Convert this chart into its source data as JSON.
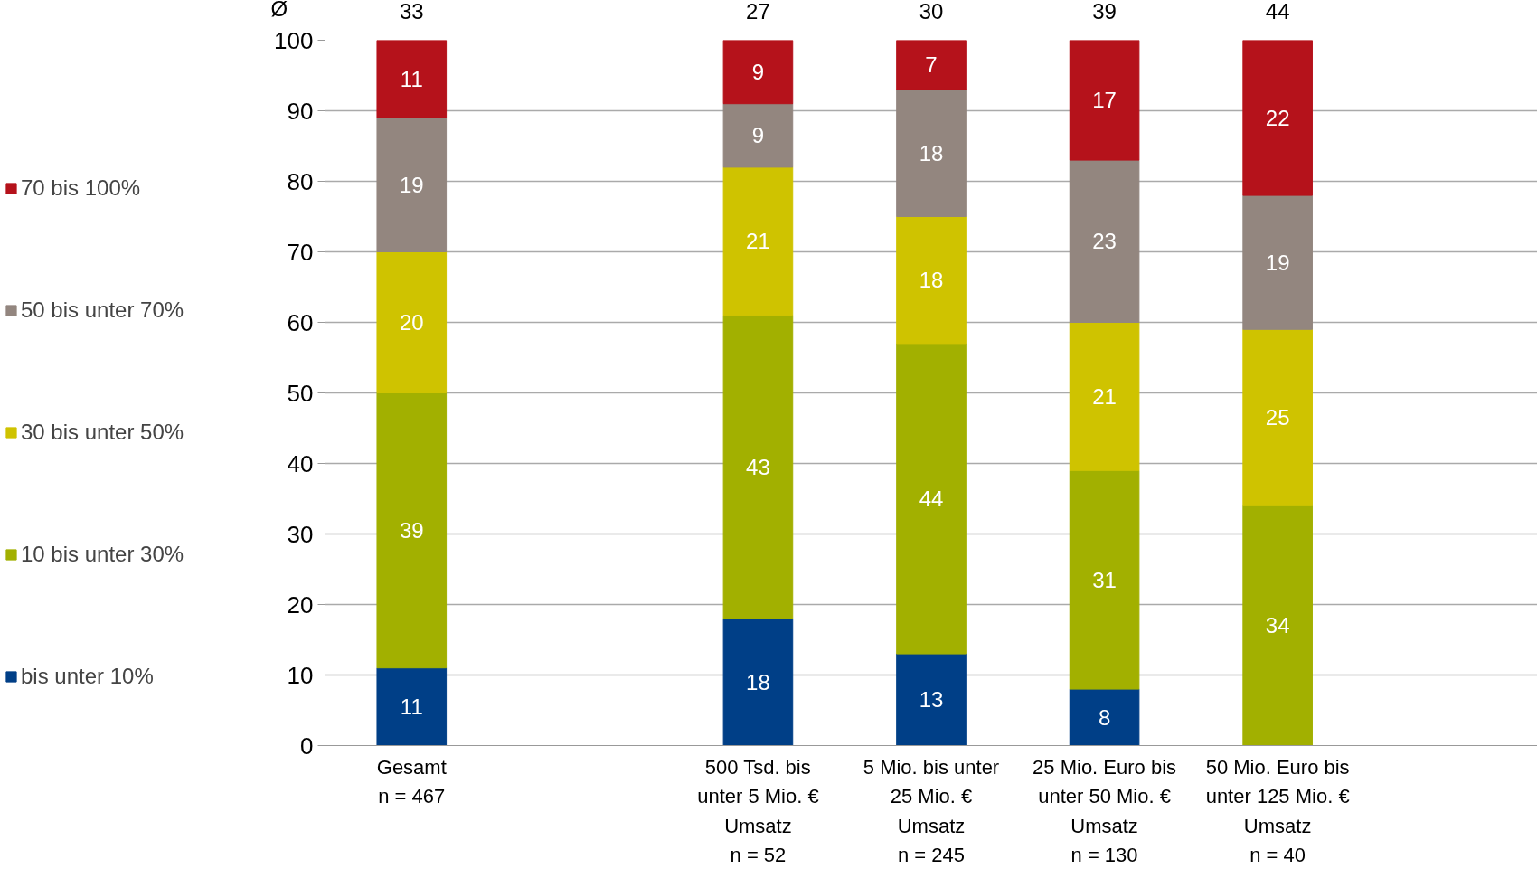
{
  "chart_data": {
    "type": "bar",
    "stacked": true,
    "categories": [
      "Gesamt\nn = 467",
      null,
      "500 Tsd. bis\nunter 5 Mio. €\nUmsatz\nn = 52",
      "5 Mio. bis unter\n25 Mio. €\nUmsatz\nn = 245",
      "25 Mio. Euro bis\nunter 50 Mio. €\nUmsatz\nn = 130",
      "50 Mio. Euro bis\nunter 125 Mio. €\nUmsatz\nn = 40",
      null
    ],
    "series": [
      {
        "name": "bis unter 10%",
        "color": "#003f87",
        "values": [
          11,
          null,
          18,
          13,
          8,
          null,
          null
        ]
      },
      {
        "name": "10 bis unter 30%",
        "color": "#a2b000",
        "values": [
          39,
          null,
          43,
          44,
          31,
          34,
          null
        ]
      },
      {
        "name": "30 bis unter 50%",
        "color": "#cfc300",
        "values": [
          20,
          null,
          21,
          18,
          21,
          25,
          null
        ]
      },
      {
        "name": "50 bis unter 70%",
        "color": "#93867f",
        "values": [
          19,
          null,
          9,
          18,
          23,
          19,
          null
        ]
      },
      {
        "name": "70 bis 100%",
        "color": "#b5121b",
        "values": [
          11,
          null,
          9,
          7,
          17,
          22,
          null
        ]
      }
    ],
    "ylim": [
      0,
      100
    ],
    "yticks": [
      0,
      10,
      20,
      30,
      40,
      50,
      60,
      70,
      80,
      90,
      100
    ],
    "grid": "y",
    "legend": "left",
    "data_labels": true,
    "annotations": [
      "Ø",
      "33",
      "27",
      "30",
      "39",
      "44"
    ]
  }
}
